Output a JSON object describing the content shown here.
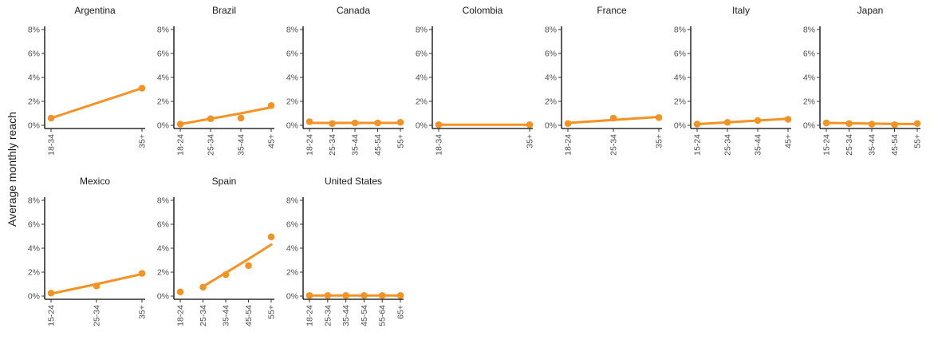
{
  "chart_data": {
    "type": "scatter",
    "ylabel": "Average monthly reach",
    "ylim": [
      0,
      8
    ],
    "yticks": [
      "0%",
      "2%",
      "4%",
      "6%",
      "8%"
    ],
    "color": "#F39324",
    "grid": false,
    "layout": "facet grid, 7 columns",
    "panels": [
      {
        "title": "Argentina",
        "categories": [
          "18-34",
          "35+"
        ],
        "values": [
          0.6,
          3.1
        ],
        "trend": [
          0.6,
          3.1
        ]
      },
      {
        "title": "Brazil",
        "categories": [
          "18-24",
          "25-34",
          "35-44",
          "45+"
        ],
        "values": [
          0.1,
          0.55,
          0.6,
          1.65
        ],
        "trend": [
          0.1,
          0.55,
          1.0,
          1.5
        ]
      },
      {
        "title": "Canada",
        "categories": [
          "18-24",
          "25-34",
          "35-44",
          "45-54",
          "55+"
        ],
        "values": [
          0.3,
          0.15,
          0.2,
          0.2,
          0.25
        ],
        "trend": [
          0.2,
          0.2,
          0.2,
          0.2,
          0.2
        ]
      },
      {
        "title": "Colombia",
        "categories": [
          "18-34",
          "35+"
        ],
        "values": [
          0.05,
          0.05
        ],
        "trend": [
          0.05,
          0.05
        ]
      },
      {
        "title": "France",
        "categories": [
          "18-24",
          "25-34",
          "35+"
        ],
        "values": [
          0.15,
          0.6,
          0.65
        ],
        "trend": [
          0.2,
          0.45,
          0.7
        ]
      },
      {
        "title": "Italy",
        "categories": [
          "15-24",
          "25-34",
          "35-44",
          "45+"
        ],
        "values": [
          0.1,
          0.25,
          0.4,
          0.5
        ],
        "trend": [
          0.1,
          0.25,
          0.4,
          0.55
        ]
      },
      {
        "title": "Japan",
        "categories": [
          "15-24",
          "25-34",
          "35-44",
          "45-54",
          "55+"
        ],
        "values": [
          0.2,
          0.15,
          0.1,
          0.05,
          0.15
        ],
        "trend": [
          0.2,
          0.17,
          0.14,
          0.12,
          0.1
        ]
      },
      {
        "title": "Mexico",
        "categories": [
          "15-24",
          "25-34",
          "35+"
        ],
        "values": [
          0.25,
          0.85,
          1.9
        ],
        "trend": [
          0.2,
          1.0,
          1.85
        ]
      },
      {
        "title": "Spain",
        "categories": [
          "18-24",
          "25-34",
          "35-44",
          "45-54",
          "55+"
        ],
        "values": [
          0.35,
          0.75,
          1.8,
          2.55,
          4.95
        ],
        "trend": [
          null,
          0.8,
          1.95,
          3.1,
          4.3
        ]
      },
      {
        "title": "United States",
        "categories": [
          "18-24",
          "25-34",
          "35-44",
          "45-54",
          "55-64",
          "65+"
        ],
        "values": [
          0.05,
          0.05,
          0.05,
          0.05,
          0.05,
          0.05
        ],
        "trend": [
          0.05,
          0.05,
          0.05,
          0.05,
          0.05,
          0.05
        ]
      }
    ]
  }
}
